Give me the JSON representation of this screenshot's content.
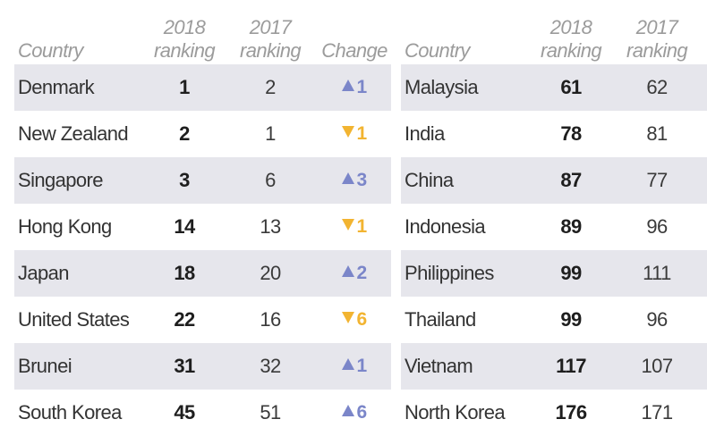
{
  "chart_data": {
    "type": "table",
    "left": {
      "headers": {
        "country": "Country",
        "r2018": [
          "2018",
          "ranking"
        ],
        "r2017": [
          "2017",
          "ranking"
        ],
        "change": "Change"
      },
      "rows": [
        {
          "country": "Denmark",
          "r2018": "1",
          "r2017": "2",
          "change": "1",
          "dir": "up"
        },
        {
          "country": "New Zealand",
          "r2018": "2",
          "r2017": "1",
          "change": "1",
          "dir": "down"
        },
        {
          "country": "Singapore",
          "r2018": "3",
          "r2017": "6",
          "change": "3",
          "dir": "up"
        },
        {
          "country": "Hong Kong",
          "r2018": "14",
          "r2017": "13",
          "change": "1",
          "dir": "down"
        },
        {
          "country": "Japan",
          "r2018": "18",
          "r2017": "20",
          "change": "2",
          "dir": "up"
        },
        {
          "country": "United States",
          "r2018": "22",
          "r2017": "16",
          "change": "6",
          "dir": "down"
        },
        {
          "country": "Brunei",
          "r2018": "31",
          "r2017": "32",
          "change": "1",
          "dir": "up"
        },
        {
          "country": "South Korea",
          "r2018": "45",
          "r2017": "51",
          "change": "6",
          "dir": "up"
        }
      ]
    },
    "right": {
      "headers": {
        "country": "Country",
        "r2018": [
          "2018",
          "ranking"
        ],
        "r2017": [
          "2017",
          "ranking"
        ]
      },
      "rows": [
        {
          "country": "Malaysia",
          "r2018": "61",
          "r2017": "62"
        },
        {
          "country": "India",
          "r2018": "78",
          "r2017": "81"
        },
        {
          "country": "China",
          "r2018": "87",
          "r2017": "77"
        },
        {
          "country": "Indonesia",
          "r2018": "89",
          "r2017": "96"
        },
        {
          "country": "Philippines",
          "r2018": "99",
          "r2017": "111"
        },
        {
          "country": "Thailand",
          "r2018": "99",
          "r2017": "96"
        },
        {
          "country": "Vietnam",
          "r2018": "117",
          "r2017": "107"
        },
        {
          "country": "North Korea",
          "r2018": "176",
          "r2017": "171"
        }
      ]
    },
    "colors": {
      "row_shade": "#e6e6ec",
      "header_text": "#9b9b9b",
      "up": "#7b86c9",
      "down": "#f2b431"
    }
  }
}
